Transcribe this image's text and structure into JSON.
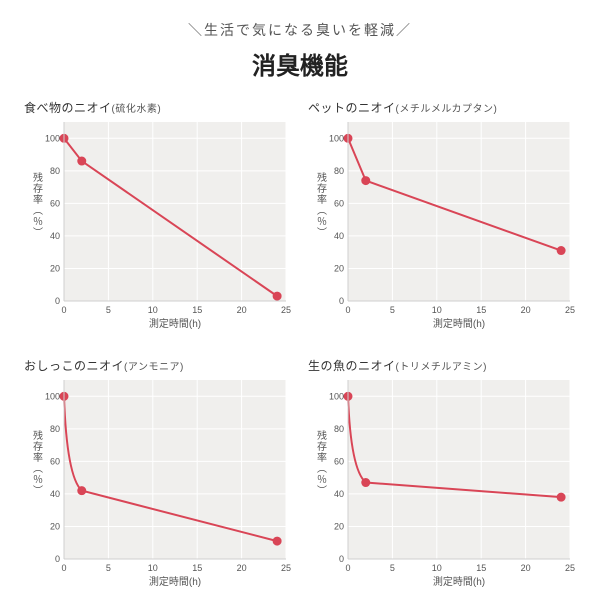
{
  "tagline": "＼生活で気になる臭いを軽減／",
  "main_title": "消臭機能",
  "text_color": "#333333",
  "bg_color": "#ffffff",
  "chart_style": {
    "plot_bg": "#f0efed",
    "grid_line": "#ffffff",
    "axis_line": "#cfcfcf",
    "line_color": "#d94556",
    "marker_fill": "#d94556",
    "marker_stroke": "#d94556",
    "line_width": 2,
    "marker_radius": 4,
    "xlim": [
      0,
      25
    ],
    "ylim": [
      0,
      110
    ],
    "xticks": [
      0,
      5,
      10,
      15,
      20,
      25
    ],
    "yticks": [
      0,
      20,
      40,
      60,
      80,
      100
    ],
    "ylabel": "残存率（％）",
    "xlabel": "測定時間(h)",
    "tick_fontsize": 9,
    "label_fontsize": 10
  },
  "panels": [
    {
      "title_main": "食べ物のニオイ",
      "title_sub": "(硫化水素)",
      "type": "line",
      "x": [
        0,
        2,
        24
      ],
      "y": [
        100,
        86,
        3
      ]
    },
    {
      "title_main": "ペットのニオイ",
      "title_sub": "(メチルメルカプタン)",
      "type": "line",
      "x": [
        0,
        2,
        24
      ],
      "y": [
        100,
        74,
        31
      ]
    },
    {
      "title_main": "おしっこのニオイ",
      "title_sub": "(アンモニア)",
      "type": "line",
      "x": [
        0,
        2,
        24
      ],
      "y": [
        100,
        42,
        11
      ],
      "curve": true
    },
    {
      "title_main": "生の魚のニオイ",
      "title_sub": "(トリメチルアミン)",
      "type": "line",
      "x": [
        0,
        2,
        24
      ],
      "y": [
        100,
        47,
        38
      ],
      "curve": true
    }
  ]
}
